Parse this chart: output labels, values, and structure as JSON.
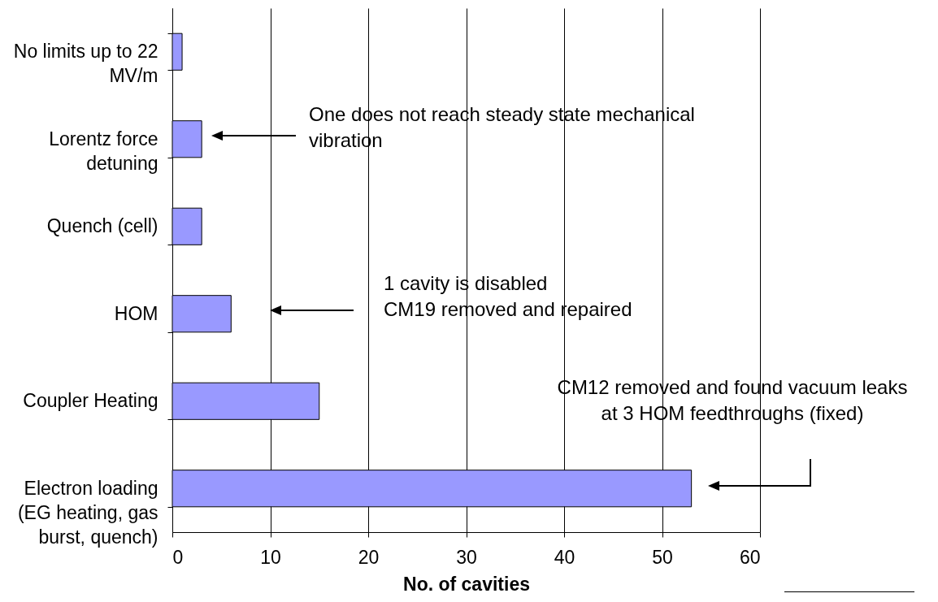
{
  "chart_data": {
    "type": "bar",
    "orientation": "horizontal",
    "categories": [
      "No limits up to 22 MV/m",
      "Lorentz force detuning",
      "Quench (cell)",
      "HOM",
      "Coupler Heating",
      "Electron loading (EG heating, gas burst, quench)"
    ],
    "values": [
      1,
      3,
      3,
      6,
      15,
      53
    ],
    "color": "#9999ff",
    "xlim": [
      0,
      60
    ],
    "xticks": [
      0,
      10,
      20,
      30,
      40,
      50,
      60
    ],
    "xlabel": "No. of cavities",
    "grid": "x",
    "annotations": [
      "One does not reach steady state mechanical\nvibration",
      "1 cavity is disabled\nCM19 removed and repaired",
      "CM12 removed and found vacuum leaks\nat 3 HOM feedthroughs (fixed)"
    ]
  }
}
